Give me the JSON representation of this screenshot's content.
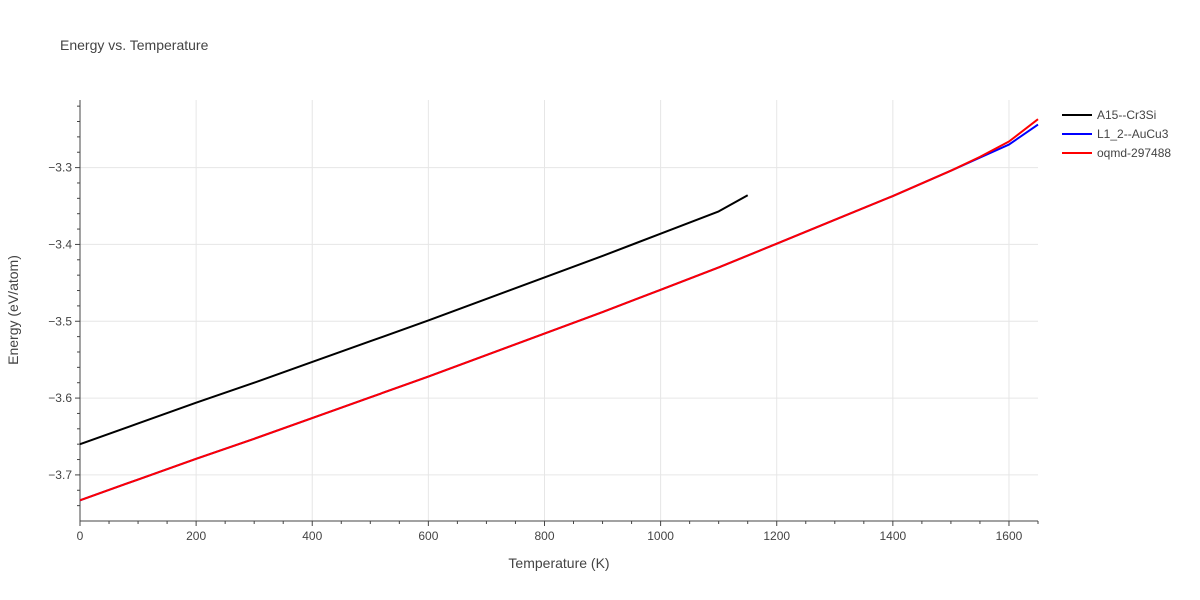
{
  "chart_data": {
    "type": "line",
    "title": "Energy vs. Temperature",
    "xlabel": "Temperature (K)",
    "ylabel": "Energy (eV/atom)",
    "xlim": [
      0,
      1650
    ],
    "ylim": [
      -3.76,
      -3.212
    ],
    "xticks": [
      0,
      200,
      400,
      600,
      800,
      1000,
      1200,
      1400,
      1600
    ],
    "yticks": [
      -3.7,
      -3.6,
      -3.5,
      -3.4,
      -3.3
    ],
    "xtick_labels": [
      "0",
      "200",
      "400",
      "600",
      "800",
      "1000",
      "1200",
      "1400",
      "1600"
    ],
    "ytick_labels": [
      "−3.7",
      "−3.6",
      "−3.5",
      "−3.4",
      "−3.3"
    ],
    "grid": true,
    "legend_position": "top-right",
    "series": [
      {
        "name": "A15--Cr3Si",
        "color": "#000000",
        "x": [
          0,
          100,
          200,
          300,
          400,
          500,
          600,
          700,
          800,
          900,
          1000,
          1100,
          1150
        ],
        "y": [
          -3.66,
          -3.633,
          -3.606,
          -3.58,
          -3.553,
          -3.526,
          -3.499,
          -3.471,
          -3.443,
          -3.415,
          -3.386,
          -3.357,
          -3.336
        ]
      },
      {
        "name": "L1_2--AuCu3",
        "color": "#0000ff",
        "x": [
          0,
          100,
          200,
          300,
          400,
          500,
          600,
          700,
          800,
          900,
          1000,
          1100,
          1200,
          1300,
          1400,
          1500,
          1550,
          1600,
          1650
        ],
        "y": [
          -3.733,
          -3.706,
          -3.679,
          -3.653,
          -3.626,
          -3.599,
          -3.572,
          -3.544,
          -3.516,
          -3.488,
          -3.459,
          -3.43,
          -3.399,
          -3.368,
          -3.337,
          -3.304,
          -3.287,
          -3.27,
          -3.244
        ]
      },
      {
        "name": "oqmd-297488",
        "color": "#ff0000",
        "x": [
          0,
          100,
          200,
          300,
          400,
          500,
          600,
          700,
          800,
          900,
          1000,
          1100,
          1200,
          1300,
          1400,
          1500,
          1550,
          1600,
          1650
        ],
        "y": [
          -3.733,
          -3.706,
          -3.679,
          -3.653,
          -3.626,
          -3.599,
          -3.572,
          -3.544,
          -3.516,
          -3.488,
          -3.459,
          -3.43,
          -3.399,
          -3.368,
          -3.337,
          -3.304,
          -3.286,
          -3.266,
          -3.237
        ]
      }
    ]
  }
}
